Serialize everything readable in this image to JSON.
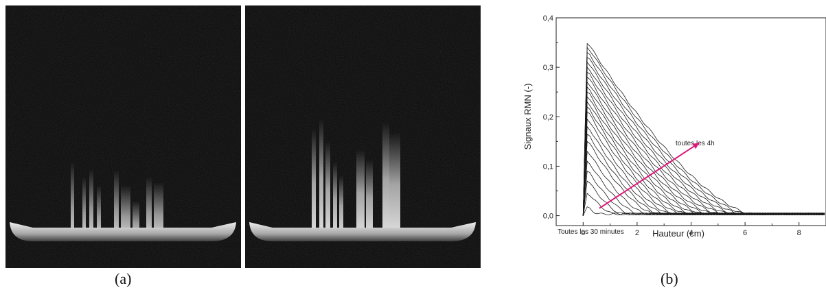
{
  "captions": {
    "a": "(a)",
    "b": "(b)"
  },
  "colors": {
    "curves": "#1a1a1a",
    "arrow": "#e0157a"
  },
  "chart_data": {
    "type": "line",
    "xlabel": "Hauteur (cm)",
    "ylabel": "Signaux RMN (-)",
    "xlim": [
      -1,
      9
    ],
    "ylim": [
      -0.02,
      0.4
    ],
    "xticks": [
      "0",
      "2",
      "4",
      "6",
      "8"
    ],
    "yticks": [
      "0,0",
      "0,1",
      "0,2",
      "0,3",
      "0,4"
    ],
    "annotations": {
      "early": "Toutes les 30 minutes",
      "late": "toutes les 4h"
    },
    "peak_values": [
      0.018,
      0.045,
      0.07,
      0.09,
      0.11,
      0.13,
      0.15,
      0.165,
      0.18,
      0.195,
      0.21,
      0.22,
      0.23,
      0.24,
      0.25,
      0.26,
      0.27,
      0.28,
      0.29,
      0.3,
      0.31,
      0.32,
      0.33,
      0.34,
      0.348
    ],
    "decay_lengths_cm": [
      0.4,
      1.0,
      1.3,
      1.6,
      1.9,
      2.2,
      2.5,
      2.7,
      2.9,
      3.1,
      3.3,
      3.5,
      3.7,
      3.9,
      4.1,
      4.3,
      4.5,
      4.7,
      4.9,
      5.1,
      5.3,
      5.5,
      5.7,
      5.9,
      6.1
    ]
  }
}
